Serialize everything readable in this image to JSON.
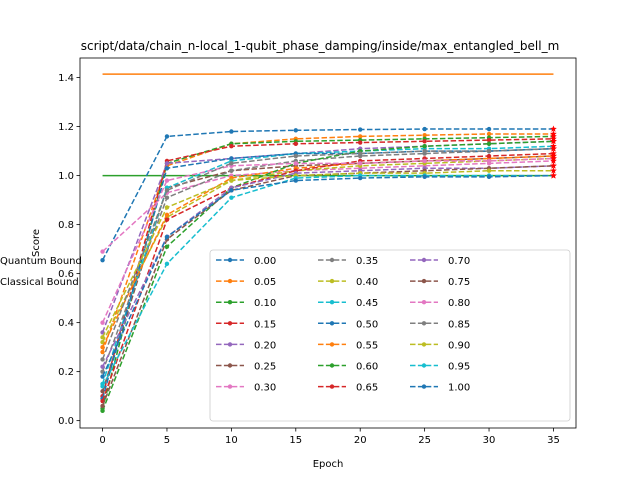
{
  "chart_data": {
    "type": "line",
    "title": "script/data/chain_n-local_1-qubit_phase_damping/inside/max_entangled_bell_m",
    "xlabel": "Epoch",
    "ylabel": "Score",
    "x": [
      0,
      5,
      10,
      15,
      20,
      25,
      30,
      35
    ],
    "xticks": [
      0,
      5,
      10,
      15,
      20,
      25,
      30,
      35
    ],
    "yticks": [
      0.0,
      0.2,
      0.4,
      0.6,
      0.8,
      1.0,
      1.2,
      1.4
    ],
    "xlim": [
      -1.75,
      36.75
    ],
    "ylim": [
      -0.03,
      1.48
    ],
    "grid": false,
    "legend_position": "lower-right",
    "series": [
      {
        "name": "0.00",
        "color": "#1f77b4",
        "values": [
          0.655,
          1.16,
          1.18,
          1.185,
          1.188,
          1.19,
          1.19,
          1.19
        ]
      },
      {
        "name": "0.05",
        "color": "#ff7f0e",
        "values": [
          0.28,
          1.04,
          1.13,
          1.15,
          1.16,
          1.165,
          1.17,
          1.17
        ]
      },
      {
        "name": "0.10",
        "color": "#2ca02c",
        "values": [
          0.05,
          1.05,
          1.13,
          1.14,
          1.145,
          1.15,
          1.155,
          1.16
        ]
      },
      {
        "name": "0.15",
        "color": "#d62728",
        "values": [
          0.1,
          1.06,
          1.12,
          1.13,
          1.135,
          1.14,
          1.145,
          1.15
        ]
      },
      {
        "name": "0.20",
        "color": "#9467bd",
        "values": [
          0.36,
          1.05,
          1.07,
          1.09,
          1.11,
          1.12,
          1.13,
          1.14
        ]
      },
      {
        "name": "0.25",
        "color": "#8c564b",
        "values": [
          0.12,
          0.95,
          1.02,
          1.04,
          1.05,
          1.06,
          1.07,
          1.08
        ]
      },
      {
        "name": "0.30",
        "color": "#e377c2",
        "values": [
          0.69,
          0.93,
          1.0,
          1.02,
          1.03,
          1.04,
          1.05,
          1.06
        ]
      },
      {
        "name": "0.35",
        "color": "#7f7f7f",
        "values": [
          0.2,
          0.91,
          1.02,
          1.06,
          1.08,
          1.09,
          1.1,
          1.11
        ]
      },
      {
        "name": "0.40",
        "color": "#bcbd22",
        "values": [
          0.32,
          0.83,
          0.98,
          1.02,
          1.04,
          1.05,
          1.06,
          1.07
        ]
      },
      {
        "name": "0.45",
        "color": "#17becf",
        "values": [
          0.15,
          0.95,
          1.06,
          1.09,
          1.1,
          1.11,
          1.11,
          1.12
        ]
      },
      {
        "name": "0.50",
        "color": "#1f77b4",
        "values": [
          0.09,
          1.03,
          1.07,
          1.09,
          1.09,
          1.1,
          1.1,
          1.11
        ]
      },
      {
        "name": "0.55",
        "color": "#ff7f0e",
        "values": [
          0.3,
          0.84,
          0.99,
          1.03,
          1.05,
          1.06,
          1.07,
          1.08
        ]
      },
      {
        "name": "0.60",
        "color": "#2ca02c",
        "values": [
          0.04,
          0.71,
          0.95,
          1.05,
          1.1,
          1.12,
          1.13,
          1.14
        ]
      },
      {
        "name": "0.65",
        "color": "#d62728",
        "values": [
          0.08,
          0.82,
          0.95,
          1.02,
          1.06,
          1.07,
          1.08,
          1.09
        ]
      },
      {
        "name": "0.70",
        "color": "#9467bd",
        "values": [
          0.22,
          0.75,
          0.95,
          1.01,
          1.02,
          1.03,
          1.03,
          1.04
        ]
      },
      {
        "name": "0.75",
        "color": "#8c564b",
        "values": [
          0.06,
          0.74,
          0.94,
          1.0,
          1.01,
          1.02,
          1.03,
          1.04
        ]
      },
      {
        "name": "0.80",
        "color": "#e377c2",
        "values": [
          0.4,
          0.98,
          1.04,
          1.05,
          1.05,
          1.06,
          1.06,
          1.07
        ]
      },
      {
        "name": "0.85",
        "color": "#7f7f7f",
        "values": [
          0.25,
          0.94,
          1.05,
          1.08,
          1.09,
          1.1,
          1.1,
          1.11
        ]
      },
      {
        "name": "0.90",
        "color": "#bcbd22",
        "values": [
          0.34,
          0.87,
          0.98,
          1.0,
          1.01,
          1.01,
          1.02,
          1.02
        ]
      },
      {
        "name": "0.95",
        "color": "#17becf",
        "values": [
          0.14,
          0.64,
          0.91,
          0.99,
          1.0,
          1.0,
          1.0,
          1.0
        ]
      },
      {
        "name": "1.00",
        "color": "#1f77b4",
        "values": [
          0.18,
          0.75,
          0.94,
          0.98,
          0.99,
          0.995,
          0.995,
          1.0
        ]
      }
    ],
    "bounds": [
      {
        "name": "Quantum Bound",
        "color": "#ff7f0e",
        "value": 1.414
      },
      {
        "name": "Classical Bound",
        "color": "#2ca02c",
        "value": 1.0
      }
    ]
  }
}
